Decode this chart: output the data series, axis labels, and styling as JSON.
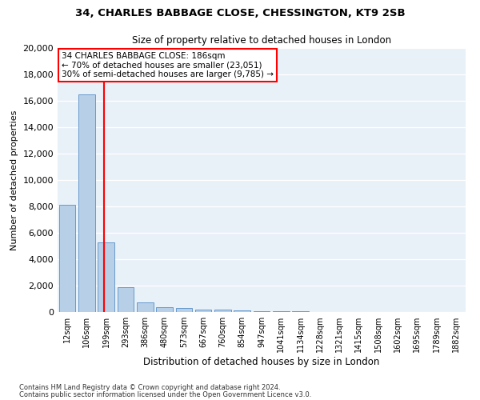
{
  "title": "34, CHARLES BABBAGE CLOSE, CHESSINGTON, KT9 2SB",
  "subtitle": "Size of property relative to detached houses in London",
  "xlabel": "Distribution of detached houses by size in London",
  "ylabel": "Number of detached properties",
  "bar_color": "#b8cfe8",
  "bar_edge_color": "#6699cc",
  "bg_color": "#e8f0f8",
  "grid_color": "#ffffff",
  "categories": [
    "12sqm",
    "106sqm",
    "199sqm",
    "293sqm",
    "386sqm",
    "480sqm",
    "573sqm",
    "667sqm",
    "760sqm",
    "854sqm",
    "947sqm",
    "1041sqm",
    "1134sqm",
    "1228sqm",
    "1321sqm",
    "1415sqm",
    "1508sqm",
    "1602sqm",
    "1695sqm",
    "1789sqm",
    "1882sqm"
  ],
  "values": [
    8100,
    16500,
    5300,
    1850,
    700,
    350,
    275,
    200,
    175,
    120,
    90,
    60,
    40,
    30,
    20,
    15,
    10,
    8,
    5,
    4,
    3
  ],
  "annotation_line1": "34 CHARLES BABBAGE CLOSE: 186sqm",
  "annotation_line2": "← 70% of detached houses are smaller (23,051)",
  "annotation_line3": "30% of semi-detached houses are larger (9,785) →",
  "vline_x": 1.87,
  "ylim_max": 20000,
  "yticks": [
    0,
    2000,
    4000,
    6000,
    8000,
    10000,
    12000,
    14000,
    16000,
    18000,
    20000
  ],
  "footer_line1": "Contains HM Land Registry data © Crown copyright and database right 2024.",
  "footer_line2": "Contains public sector information licensed under the Open Government Licence v3.0."
}
